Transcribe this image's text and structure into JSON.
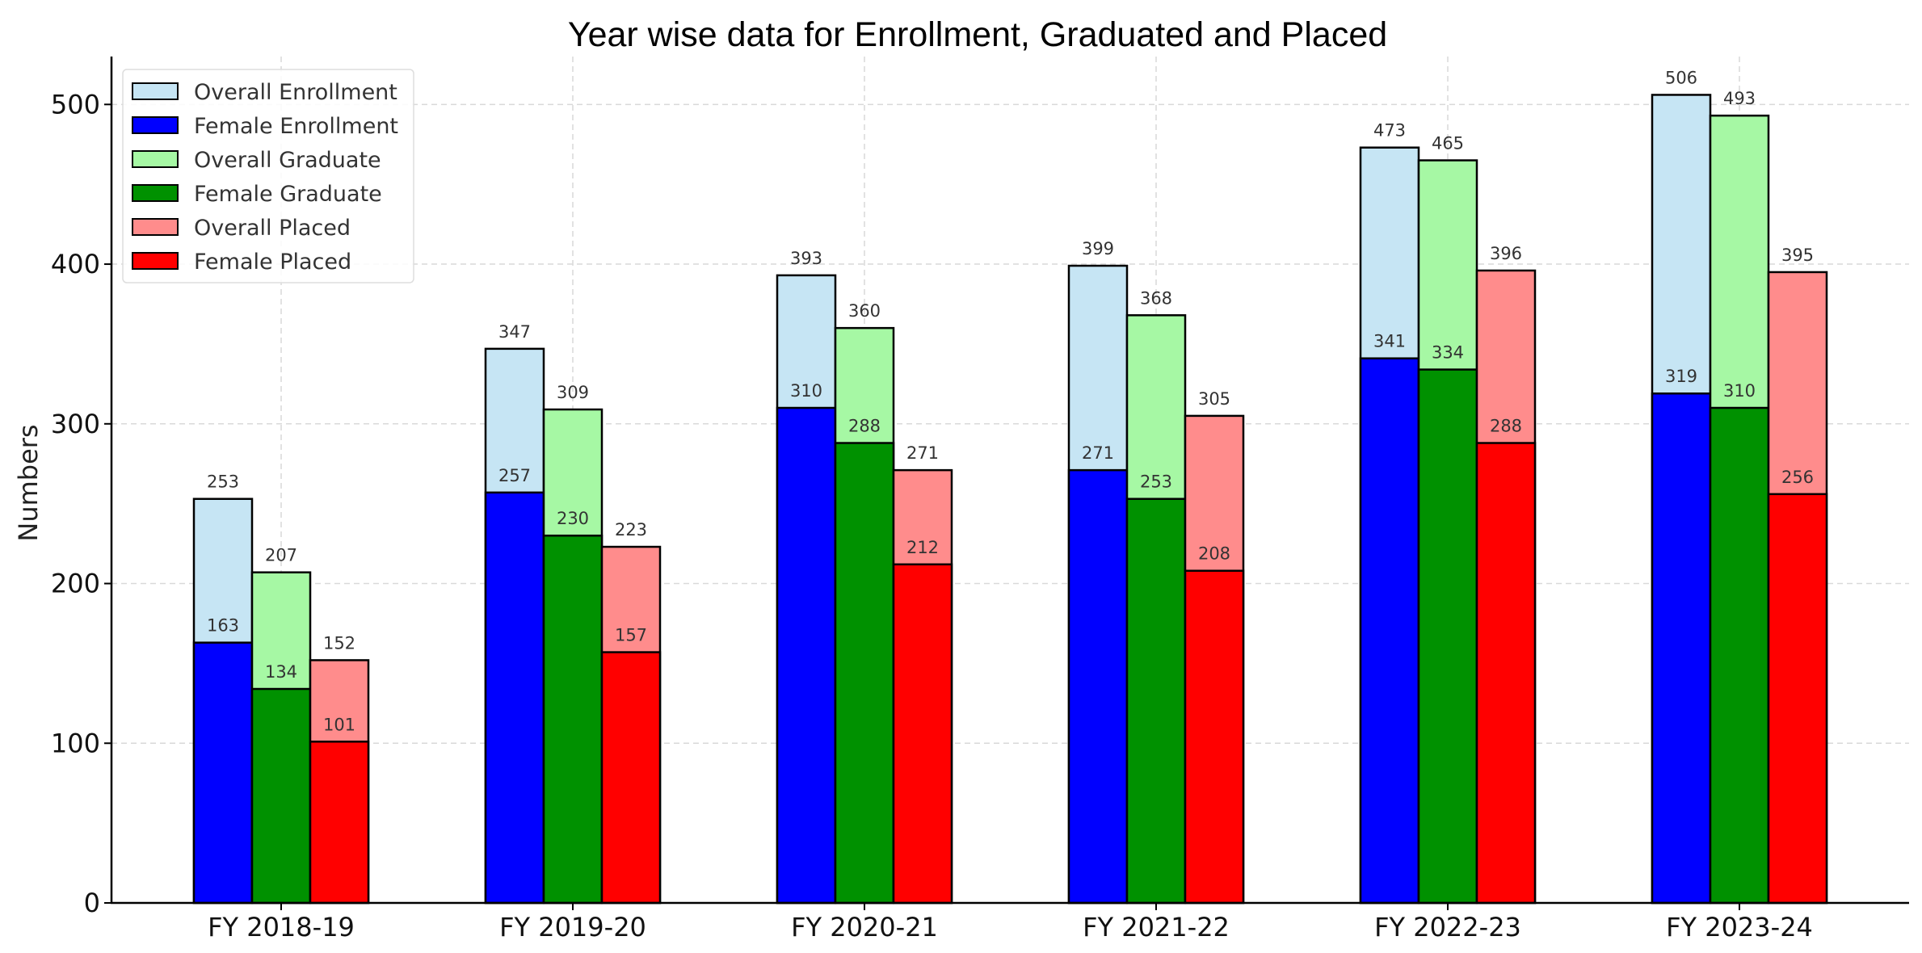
{
  "chart_data": {
    "type": "bar",
    "title": "Year wise data for Enrollment, Graduated and Placed",
    "xlabel": "",
    "ylabel": "Numbers",
    "categories": [
      "FY 2018-19",
      "FY 2019-20",
      "FY 2020-21",
      "FY 2021-22",
      "FY 2022-23",
      "FY 2023-24"
    ],
    "ylim": [
      0,
      530
    ],
    "yticks": [
      0,
      100,
      200,
      300,
      400,
      500
    ],
    "grid": true,
    "legend_position": "top-left",
    "series": [
      {
        "name": "Overall Enrollment",
        "group": "Enrollment",
        "layer": "overall",
        "color": "#c6e5f4",
        "values": [
          253,
          347,
          393,
          399,
          473,
          506
        ]
      },
      {
        "name": "Female Enrollment",
        "group": "Enrollment",
        "layer": "female",
        "color": "#0000ff",
        "values": [
          163,
          257,
          310,
          271,
          341,
          319
        ]
      },
      {
        "name": "Overall Graduate",
        "group": "Graduate",
        "layer": "overall",
        "color": "#a6f8a4",
        "values": [
          207,
          309,
          360,
          368,
          465,
          493
        ]
      },
      {
        "name": "Female Graduate",
        "group": "Graduate",
        "layer": "female",
        "color": "#009100",
        "values": [
          134,
          230,
          288,
          253,
          334,
          310
        ]
      },
      {
        "name": "Overall Placed",
        "group": "Placed",
        "layer": "overall",
        "color": "#ff8c8c",
        "values": [
          152,
          223,
          271,
          305,
          396,
          395
        ]
      },
      {
        "name": "Female Placed",
        "group": "Placed",
        "layer": "female",
        "color": "#ff0000",
        "values": [
          101,
          157,
          212,
          208,
          288,
          256
        ]
      }
    ]
  }
}
